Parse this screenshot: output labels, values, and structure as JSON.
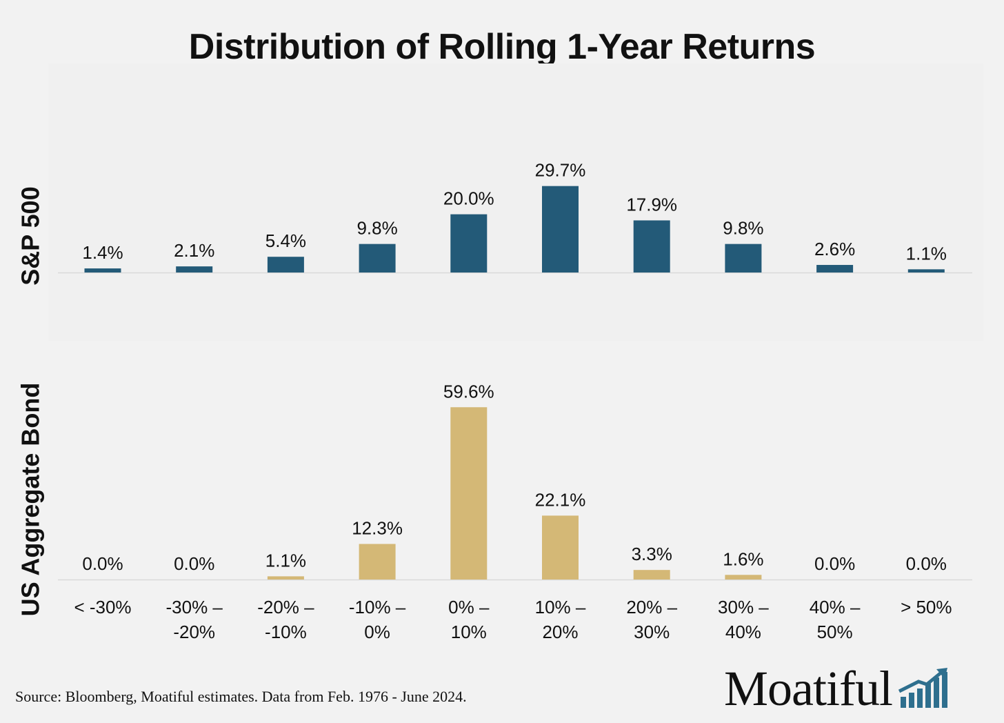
{
  "title": "Distribution of Rolling 1-Year Returns",
  "source": "Source: Bloomberg, Moatiful estimates. Data from Feb. 1976 - June 2024.",
  "logo": {
    "text": "Moatiful",
    "icon": "rising-bars-arrow-icon"
  },
  "colors": {
    "sp500": "#235a78",
    "bond": "#d4b876",
    "baseline": "#d9d9d9"
  },
  "chart_data": [
    {
      "type": "bar",
      "name": "S&P 500",
      "ylabel": "S&P 500",
      "categories": [
        [
          "< -30%"
        ],
        [
          "-30% –",
          "-20%"
        ],
        [
          "-20% –",
          "-10%"
        ],
        [
          "-10% –",
          "0%"
        ],
        [
          "0% –",
          "10%"
        ],
        [
          "10% –",
          "20%"
        ],
        [
          "20% –",
          "30%"
        ],
        [
          "30% –",
          "40%"
        ],
        [
          "40% –",
          "50%"
        ],
        [
          "> 50%"
        ]
      ],
      "values": [
        1.4,
        2.1,
        5.4,
        9.8,
        20.0,
        29.7,
        17.9,
        9.8,
        2.6,
        1.1
      ],
      "labels": [
        "1.4%",
        "2.1%",
        "5.4%",
        "9.8%",
        "20.0%",
        "29.7%",
        "17.9%",
        "9.8%",
        "2.6%",
        "1.1%"
      ],
      "unit": "%",
      "grid": false
    },
    {
      "type": "bar",
      "name": "US Aggregate Bond",
      "ylabel": "US Aggregate Bond",
      "categories": [
        [
          "< -30%"
        ],
        [
          "-30% –",
          "-20%"
        ],
        [
          "-20% –",
          "-10%"
        ],
        [
          "-10% –",
          "0%"
        ],
        [
          "0% –",
          "10%"
        ],
        [
          "10% –",
          "20%"
        ],
        [
          "20% –",
          "30%"
        ],
        [
          "30% –",
          "40%"
        ],
        [
          "40% –",
          "50%"
        ],
        [
          "> 50%"
        ]
      ],
      "values": [
        0.0,
        0.0,
        1.1,
        12.3,
        59.6,
        22.1,
        3.3,
        1.6,
        0.0,
        0.0
      ],
      "labels": [
        "0.0%",
        "0.0%",
        "1.1%",
        "12.3%",
        "59.6%",
        "22.1%",
        "3.3%",
        "1.6%",
        "0.0%",
        "0.0%"
      ],
      "unit": "%",
      "grid": false
    }
  ]
}
